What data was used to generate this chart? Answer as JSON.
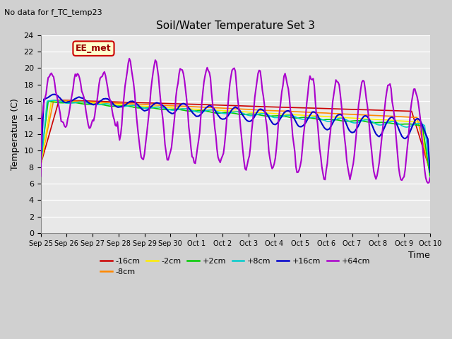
{
  "title": "Soil/Water Temperature Set 3",
  "subtitle": "No data for f_TC_temp23",
  "ylabel": "Temperature (C)",
  "xlabel": "Time",
  "ylim": [
    0,
    24
  ],
  "yticks": [
    0,
    2,
    4,
    6,
    8,
    10,
    12,
    14,
    16,
    18,
    20,
    22,
    24
  ],
  "plot_bg_color": "#e8e8e8",
  "fig_bg_color": "#d0d0d0",
  "legend_label": "EE_met",
  "legend_box_facecolor": "#ffffcc",
  "legend_box_edgecolor": "#cc0000",
  "series_colors": {
    "-16cm": "#cc0000",
    "-8cm": "#ff8800",
    "-2cm": "#ffee00",
    "+2cm": "#00cc00",
    "+8cm": "#00cccc",
    "+16cm": "#0000cc",
    "+64cm": "#aa00cc"
  },
  "xtick_labels": [
    "Sep 25",
    "Sep 26",
    "Sep 27",
    "Sep 28",
    "Sep 29",
    "Sep 30",
    "Oct 1",
    "Oct 2",
    "Oct 3",
    "Oct 4",
    "Oct 5",
    "Oct 6",
    "Oct 7",
    "Oct 8",
    "Oct 9",
    "Oct 10"
  ]
}
